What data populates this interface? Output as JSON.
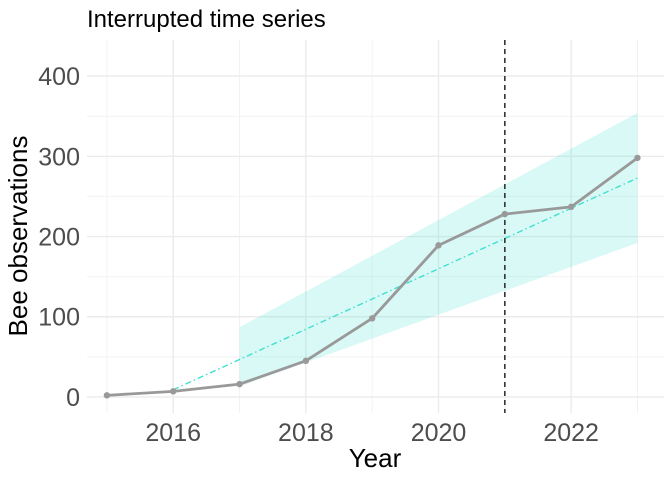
{
  "chart_data": {
    "type": "line",
    "title": "Interrupted time series",
    "xlabel": "Year",
    "ylabel": "Bee observations",
    "xlim": [
      2014.7,
      2023.4
    ],
    "ylim": [
      -20,
      445
    ],
    "x_ticks": [
      2016,
      2018,
      2020,
      2022
    ],
    "x_tick_labels": [
      "2016",
      "2018",
      "2020",
      "2022"
    ],
    "y_ticks": [
      0,
      100,
      200,
      300,
      400
    ],
    "y_tick_labels": [
      "0",
      "100",
      "200",
      "300",
      "400"
    ],
    "x_minor_grid": [
      2015,
      2017,
      2019,
      2021,
      2023
    ],
    "y_minor_grid": [
      50,
      150,
      250,
      350
    ],
    "grid": true,
    "legend": "none",
    "intervention_x": 2021,
    "series": [
      {
        "kind": "observed",
        "color": "#999999",
        "x": [
          2015,
          2016,
          2017,
          2018,
          2019,
          2020,
          2021,
          2022,
          2023
        ],
        "y": [
          2,
          7,
          16,
          45,
          98,
          189,
          228,
          237,
          298
        ]
      },
      {
        "kind": "trend",
        "color": "#40E0D0",
        "x": [
          2016,
          2023
        ],
        "y": [
          9,
          273
        ]
      }
    ],
    "band": {
      "color": "#40E0D0",
      "x": [
        2017,
        2023
      ],
      "lower": [
        13,
        192
      ],
      "upper": [
        87,
        354
      ]
    }
  }
}
